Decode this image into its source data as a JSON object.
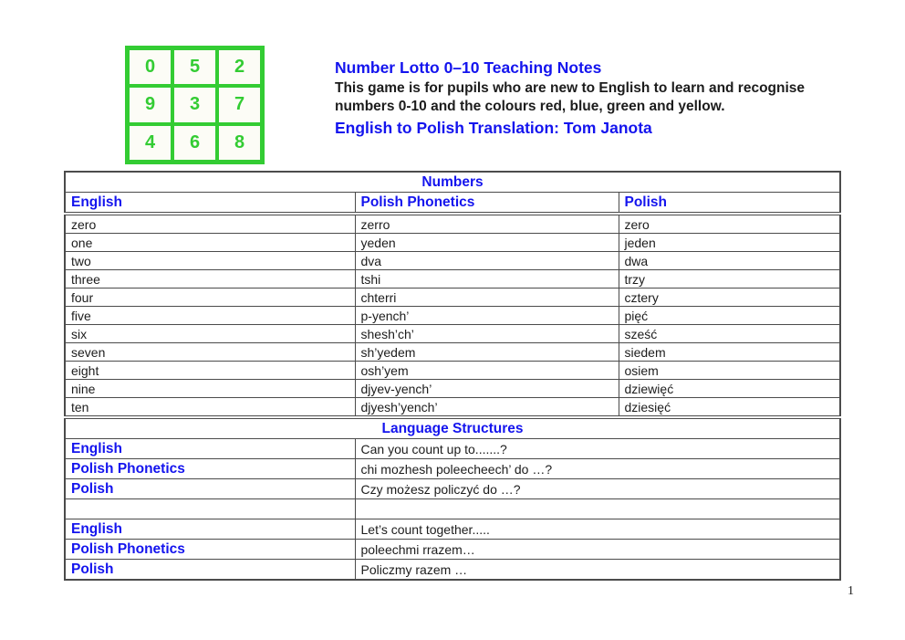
{
  "page": {
    "number": "1"
  },
  "colors": {
    "accent_blue": "#1414ee",
    "lotto_green": "#33cc33"
  },
  "lotto_grid": {
    "rows": [
      [
        "0",
        "5",
        "2"
      ],
      [
        "9",
        "3",
        "7"
      ],
      [
        "4",
        "6",
        "8"
      ]
    ]
  },
  "header": {
    "title": "Number Lotto 0–10 Teaching Notes",
    "description_lines": [
      "This game is for pupils who are new to English to learn and recognise",
      "numbers 0-10 and the colours red, blue, green and yellow."
    ],
    "translation_credit": "English to Polish Translation: Tom Janota"
  },
  "numbers_table": {
    "section_title": "Numbers",
    "columns": [
      "English",
      "Polish Phonetics",
      "Polish"
    ],
    "rows": [
      [
        "zero",
        "zerro",
        "zero"
      ],
      [
        "one",
        "yeden",
        "jeden"
      ],
      [
        "two",
        "dva",
        "dwa"
      ],
      [
        "three",
        "tshi",
        "trzy"
      ],
      [
        "four",
        "chterri",
        "cztery"
      ],
      [
        "five",
        "p-yench’",
        "pięć"
      ],
      [
        "six",
        "shesh’ch’",
        "sześć"
      ],
      [
        "seven",
        "sh’yedem",
        "siedem"
      ],
      [
        "eight",
        "osh’yem",
        "osiem"
      ],
      [
        "nine",
        "djyev-yench’",
        "dziewięć"
      ],
      [
        "ten",
        "djyesh’yench’",
        "dziesięć"
      ]
    ]
  },
  "language_structures": {
    "section_title": "Language Structures",
    "groups": [
      {
        "rows": [
          {
            "label": "English",
            "text": "Can you count up to.......?"
          },
          {
            "label": "Polish Phonetics",
            "text": "chi mozhesh poleecheech’ do …?"
          },
          {
            "label": "Polish",
            "text": "Czy możesz policzyć do …?"
          }
        ]
      },
      {
        "rows": [
          {
            "label": "English",
            "text": "Let’s count together....."
          },
          {
            "label": "Polish Phonetics",
            "text": "poleechmi rrazem…"
          },
          {
            "label": "Polish",
            "text": "Policzmy razem …"
          }
        ]
      }
    ]
  }
}
